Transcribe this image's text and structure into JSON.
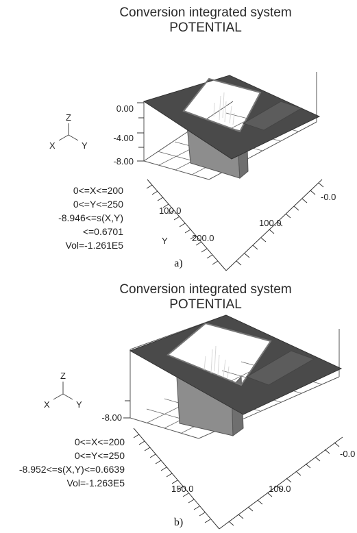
{
  "panels": [
    {
      "title_line1": "Conversion integrated system",
      "title_line2": "POTENTIAL",
      "axis_triad": {
        "z": "Z",
        "x": "X",
        "y": "Y"
      },
      "z_ticks": [
        "0.00",
        "-4.00",
        "-8.00"
      ],
      "x_tick": "-0.0",
      "x_tick2": "100.0",
      "y_tick1": "100.0",
      "y_tick2": "200.0",
      "y_label": "Y",
      "stats": [
        "0<=X<=200",
        "0<=Y<=250",
        "-8.946<=s(X,Y)<=0.6701",
        "Vol=-1.261E5"
      ],
      "caption": "a)"
    },
    {
      "title_line1": "Conversion integrated system",
      "title_line2": "POTENTIAL",
      "axis_triad": {
        "z": "Z",
        "x": "X",
        "y": "Y"
      },
      "z_ticks": [
        "-8.00"
      ],
      "x_tick": "-0.0",
      "x_tick2": "100.0",
      "y_tick1": "150.0",
      "stats": [
        "0<=X<=200",
        "0<=Y<=250",
        "-8.952<=s(X,Y)<=0.6639",
        "Vol=-1.263E5"
      ],
      "caption": "b)"
    }
  ]
}
